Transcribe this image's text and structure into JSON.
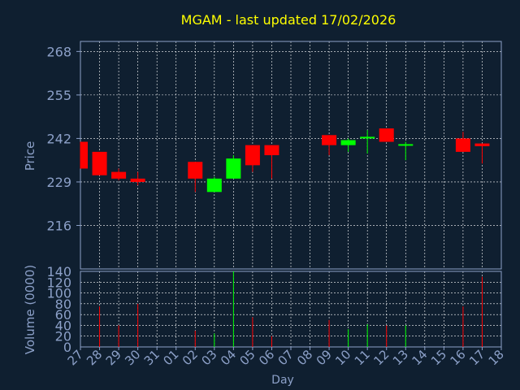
{
  "chart_data": {
    "type": "candlestick",
    "title": "MGAM - last updated 17/02/2026",
    "price_panel": {
      "ylabel": "Price",
      "ylim": [
        203,
        271
      ],
      "yticks": [
        "268",
        "255",
        "242",
        "229",
        "216"
      ],
      "ytick_values": [
        268,
        255,
        242,
        229,
        216
      ],
      "candles": [
        {
          "day": "27",
          "open": 241,
          "close": 233,
          "high": 241,
          "low": 233,
          "color": "red"
        },
        {
          "day": "28",
          "open": 238,
          "close": 231,
          "high": 238,
          "low": 231,
          "color": "red"
        },
        {
          "day": "29",
          "open": 232,
          "close": 230,
          "high": 233,
          "low": 229.5,
          "color": "red"
        },
        {
          "day": "30",
          "open": 230,
          "close": 229,
          "high": 232,
          "low": 228,
          "color": "red"
        },
        {
          "day": "02",
          "open": 235,
          "close": 230,
          "high": 235,
          "low": 226,
          "color": "red"
        },
        {
          "day": "03",
          "open": 226,
          "close": 230,
          "high": 230.5,
          "low": 226,
          "color": "green"
        },
        {
          "day": "04",
          "open": 230,
          "close": 236,
          "high": 237,
          "low": 230,
          "color": "green"
        },
        {
          "day": "05",
          "open": 240,
          "close": 234,
          "high": 240,
          "low": 232,
          "color": "red"
        },
        {
          "day": "06",
          "open": 240,
          "close": 237,
          "high": 240,
          "low": 230,
          "color": "red"
        },
        {
          "day": "09",
          "open": 243,
          "close": 240,
          "high": 243,
          "low": 237,
          "color": "red"
        },
        {
          "day": "10",
          "open": 240,
          "close": 241.5,
          "high": 242,
          "low": 238,
          "color": "green"
        },
        {
          "day": "11",
          "open": 242,
          "close": 242.5,
          "high": 244.5,
          "low": 237.5,
          "color": "green"
        },
        {
          "day": "12",
          "open": 245,
          "close": 241,
          "high": 245,
          "low": 241,
          "color": "red"
        },
        {
          "day": "13",
          "open": 240,
          "close": 240.3,
          "high": 241,
          "low": 235.5,
          "color": "green"
        },
        {
          "day": "16",
          "open": 242,
          "close": 238,
          "high": 244,
          "low": 238,
          "color": "red"
        },
        {
          "day": "17",
          "open": 240.5,
          "close": 239.7,
          "high": 240.5,
          "low": 234.5,
          "color": "red"
        }
      ]
    },
    "volume_panel": {
      "ylabel": "Volume (0000)",
      "ylim": [
        0,
        140
      ],
      "yticks": [
        "140",
        "120",
        "100",
        "80",
        "60",
        "40",
        "20",
        "0"
      ],
      "ytick_values": [
        140,
        120,
        100,
        80,
        60,
        40,
        20,
        0
      ],
      "bars": [
        {
          "day": "28",
          "value": 75,
          "color": "red"
        },
        {
          "day": "29",
          "value": 40,
          "color": "red"
        },
        {
          "day": "30",
          "value": 80,
          "color": "red"
        },
        {
          "day": "02",
          "value": 30,
          "color": "red"
        },
        {
          "day": "03",
          "value": 25,
          "color": "green"
        },
        {
          "day": "04",
          "value": 140,
          "color": "green"
        },
        {
          "day": "05",
          "value": 55,
          "color": "red"
        },
        {
          "day": "06",
          "value": 20,
          "color": "red"
        },
        {
          "day": "09",
          "value": 50,
          "color": "red"
        },
        {
          "day": "10",
          "value": 33,
          "color": "green"
        },
        {
          "day": "11",
          "value": 42,
          "color": "green"
        },
        {
          "day": "12",
          "value": 40,
          "color": "red"
        },
        {
          "day": "13",
          "value": 40,
          "color": "green"
        },
        {
          "day": "16",
          "value": 75,
          "color": "red"
        },
        {
          "day": "17",
          "value": 130,
          "color": "red"
        }
      ]
    },
    "x_axis": {
      "label": "Day",
      "categories": [
        "27",
        "28",
        "29",
        "30",
        "31",
        "01",
        "02",
        "03",
        "04",
        "05",
        "06",
        "07",
        "08",
        "09",
        "10",
        "11",
        "12",
        "13",
        "14",
        "15",
        "16",
        "17",
        "18"
      ]
    },
    "grid": true,
    "colors": {
      "background": "#0f1f30",
      "title": "#ffff00",
      "axis_text": "#8ca0c8",
      "up": "#00ff00",
      "down": "#ff0000",
      "frame": "#8ca0c8",
      "grid": "#ffffff"
    }
  }
}
